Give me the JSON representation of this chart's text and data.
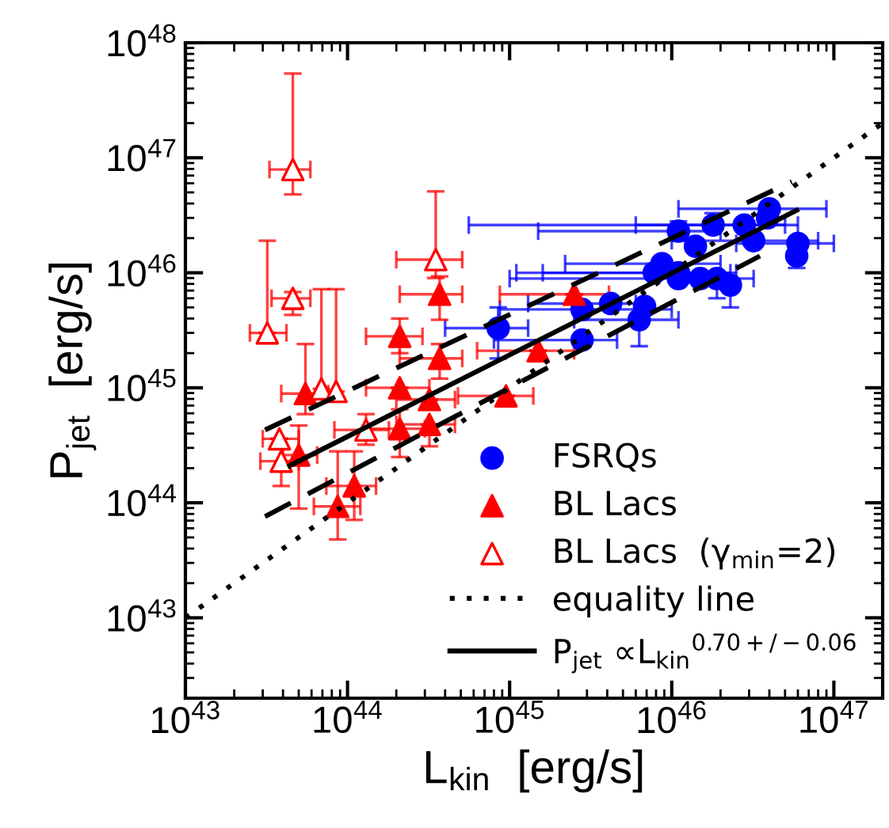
{
  "chart_data": {
    "type": "scatter",
    "xlabel": "L$_{kin}$  [erg/s]",
    "ylabel": "P$_{jet}$  [erg/s]",
    "log": "xy",
    "xlim": [
      1e+43,
      2e+47
    ],
    "ylim": [
      2e+42,
      1e+48
    ],
    "xticks": [
      {
        "value": 1e+43,
        "label": "10$^{43}$"
      },
      {
        "value": 1e+44,
        "label": "10$^{44}$"
      },
      {
        "value": 1e+45,
        "label": "10$^{45}$"
      },
      {
        "value": 1e+46,
        "label": "10$^{46}$"
      },
      {
        "value": 1e+47,
        "label": "10$^{47}$"
      }
    ],
    "yticks": [
      {
        "value": 1e+43,
        "label": "10$^{43}$"
      },
      {
        "value": 1e+44,
        "label": "10$^{44}$"
      },
      {
        "value": 1e+45,
        "label": "10$^{45}$"
      },
      {
        "value": 1e+46,
        "label": "10$^{46}$"
      },
      {
        "value": 1e+47,
        "label": "10$^{47}$"
      },
      {
        "value": 1e+48,
        "label": "10$^{48}$"
      }
    ],
    "grid": false,
    "legend": "bottom right",
    "series": [
      {
        "name": "FSRQs",
        "marker": "circle",
        "color": "#0000ff",
        "x": [
          8.5e+44,
          2.8e+45,
          2.8e+45,
          4.2e+45,
          6.3e+45,
          6.8e+45,
          7.8e+45,
          8.7e+45,
          1.1e+46,
          1.1e+46,
          1.1e+46,
          1.4e+46,
          1.5e+46,
          1.9e+46,
          2.3e+46,
          1.8e+46,
          2.8e+46,
          3.2e+46,
          4e+46,
          3.9e+46,
          6e+46,
          5.9e+46
        ],
        "values": [
          3.3e+45,
          2.6e+45,
          4.8e+45,
          5.4e+45,
          3.9e+45,
          5.1e+45,
          1e+46,
          1.2e+46,
          1e+46,
          8.9e+45,
          2.3e+46,
          1.7e+46,
          8.9e+45,
          8.9e+45,
          7.8e+45,
          2.6e+46,
          2.6e+46,
          1.9e+46,
          3.6e+46,
          3e+46,
          1.8e+46,
          1.4e+46
        ],
        "xerrors": [
          [
            4e+44,
            1.3e+45
          ],
          [
            8e+44,
            4.6e+45
          ],
          [
            8.7e+44,
            1e+46
          ],
          [
            1.3e+45,
            6e+45
          ],
          [
            2.5e+45,
            1.1e+46
          ],
          null,
          [
            1.6e+45,
            2.3e+46
          ],
          [
            2.2e+45,
            2e+46
          ],
          [
            1.1e+45,
            2.5e+46
          ],
          [
            1e+45,
            3.2e+46
          ],
          [
            1.5e+45,
            2e+46
          ],
          null,
          null,
          null,
          null,
          [
            5.6e+44,
            6e+46
          ],
          [
            6e+45,
            5e+46
          ],
          [
            1e+46,
            8e+46
          ],
          [
            1.1e+46,
            9e+46
          ],
          null,
          [
            2.5e+46,
            1e+47
          ],
          null
        ],
        "errors": [
          [
            1.8e+45,
            5e+45
          ],
          null,
          null,
          null,
          [
            2.3e+45,
            3.9e+45
          ],
          null,
          null,
          null,
          null,
          null,
          [
            2.3e+46,
            2.8e+46
          ],
          null,
          null,
          [
            6e+45,
            8.9e+45
          ],
          [
            5e+45,
            7.8e+45
          ],
          [
            2.6e+46,
            3.3e+46
          ],
          null,
          null,
          null,
          null,
          null,
          [
            1.1e+46,
            1.4e+46
          ]
        ]
      },
      {
        "name": "BL Lacs",
        "marker": "triangle",
        "color": "#ff0000",
        "x": [
          3.7e+44,
          2.1e+44,
          3.7e+44,
          5.5e+43,
          2.1e+44,
          3.2e+44,
          9.5e+44,
          2.1e+44,
          3.2e+44,
          5e+43,
          1.1e+44,
          8.7e+43,
          2.5e+45,
          1.5e+45
        ],
        "values": [
          6.5e+45,
          2.8e+45,
          1.8e+45,
          8.9e+44,
          1e+45,
          7.9e+44,
          8.5e+44,
          4.4e+44,
          4.8e+44,
          2.6e+44,
          1.4e+44,
          9.3e+43,
          6.5e+45,
          2.1e+45
        ],
        "xerrors": [
          [
            2.1e+44,
            5.1e+44
          ],
          [
            1.3e+44,
            2.9e+44
          ],
          [
            2.1e+44,
            5.1e+44
          ],
          [
            3.9e+43,
            7.6e+43
          ],
          [
            1.3e+44,
            3.2e+44
          ],
          [
            2e+44,
            4.6e+44
          ],
          [
            4.8e+44,
            1.4e+45
          ],
          [
            1.3e+44,
            3e+44
          ],
          [
            2e+44,
            4.6e+44
          ],
          [
            4e+43,
            6.5e+43
          ],
          [
            7.4e+43,
            1.5e+44
          ],
          [
            6.2e+43,
            1.2e+44
          ],
          [
            8.7e+44,
            4.1e+45
          ],
          [
            6.3e+44,
            2.5e+45
          ]
        ],
        "errors": [
          [
            3.9e+45,
            9.3e+45
          ],
          [
            2e+45,
            4e+45
          ],
          [
            1.2e+45,
            2.4e+45
          ],
          [
            5.9e+44,
            2.4e+45
          ],
          null,
          null,
          null,
          [
            2.5e+44,
            6.5e+44
          ],
          [
            3.1e+44,
            4.8e+44
          ],
          [
            8.9e+43,
            4.7e+44
          ],
          [
            7.1e+43,
            2.8e+44
          ],
          [
            4.8e+43,
            2.8e+44
          ],
          null,
          null
        ]
      },
      {
        "name": "BL Lacs  (γ$_{min}$=2)",
        "marker": "triangle",
        "color": "#ff0000",
        "x": [
          4.6e+43,
          3.2e+43,
          4.6e+43,
          6.9e+43,
          8.5e+43,
          3.5e+44,
          3.8e+43,
          3.9e+43,
          1.3e+44
        ],
        "values": [
          7.9e+46,
          3e+45,
          6e+45,
          9.8e+44,
          9.3e+44,
          1.3e+46,
          3.6e+44,
          2.3e+44,
          4.3e+44
        ],
        "xerrors": [
          [
            3.3e+43,
            5.9e+43
          ],
          [
            2.5e+43,
            4.2e+43
          ],
          [
            3.4e+43,
            5.9e+43
          ],
          null,
          null,
          [
            2e+44,
            5.1e+44
          ],
          [
            3e+43,
            5e+43
          ],
          [
            2.9e+43,
            5e+43
          ],
          [
            8.3e+43,
            1.8e+44
          ]
        ],
        "errors": [
          [
            4.8e+46,
            5.4e+47
          ],
          [
            3e+45,
            1.9e+46
          ],
          [
            4.3e+45,
            6.8e+45
          ],
          [
            9.8e+44,
            7.2e+45
          ],
          [
            9.3e+44,
            7.2e+45
          ],
          [
            9e+45,
            5.1e+46
          ],
          null,
          [
            1.4e+44,
            3e+44
          ],
          [
            3.2e+44,
            5.9e+44
          ]
        ]
      },
      {
        "name": "equality line",
        "type": "line",
        "line_style": "dotted",
        "color": "#000000",
        "x": [
          1e+43,
          2e+47
        ],
        "values": [
          1e+43,
          2e+47
        ]
      },
      {
        "name": "P$_{jet}$ ∝L$_{kin}$$^{0.70+/−0.06}$",
        "type": "line",
        "line_style": "solid",
        "color": "#000000",
        "x": [
          4.4e+43,
          5.9e+46
        ],
        "values": [
          2.1e+44,
          3.5e+46
        ]
      },
      {
        "type": "line",
        "line_style": "dashed",
        "color": "#000000",
        "x": [
          3.1e+43,
          5.5e+46
        ],
        "values": [
          4.3e+44,
          6.2e+46
        ]
      },
      {
        "type": "line",
        "line_style": "dashed",
        "color": "#000000",
        "x": [
          3.1e+43,
          3.5e+46
        ],
        "values": [
          7.6e+43,
          1.4e+46
        ]
      }
    ]
  }
}
